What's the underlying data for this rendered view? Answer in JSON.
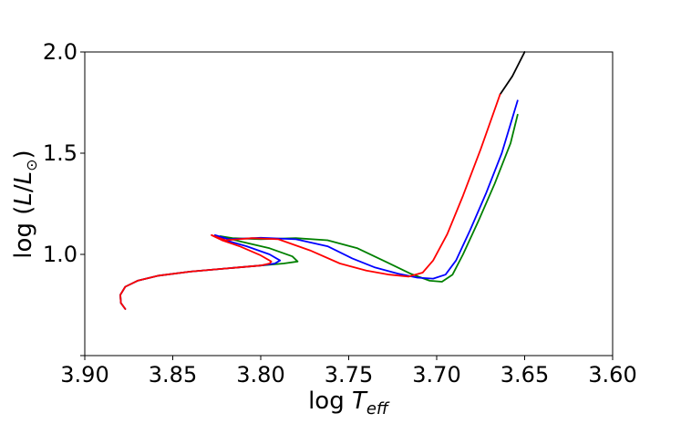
{
  "chart_data": {
    "type": "line",
    "title": "",
    "xlabel": {
      "prefix": "log ",
      "italic": "T",
      "subscript": "eff"
    },
    "ylabel": {
      "prefix": "log (",
      "italic1": "L",
      "slash": "/",
      "italic2": "L",
      "subscript": "⊙",
      "suffix": ")"
    },
    "xlim": [
      3.9,
      3.6
    ],
    "ylim": [
      0.5,
      2.0
    ],
    "x_ticks": [
      3.9,
      3.85,
      3.8,
      3.75,
      3.7,
      3.65,
      3.6
    ],
    "x_tick_labels": [
      "3.90",
      "3.85",
      "3.80",
      "3.75",
      "3.70",
      "3.65",
      "3.60"
    ],
    "y_ticks": [
      0.5,
      1.0,
      1.5,
      2.0
    ],
    "y_tick_labels": [
      "",
      "1.0",
      "1.5",
      "2.0"
    ],
    "grid": false,
    "legend": "none",
    "series": [
      {
        "color": "#000000",
        "points": [
          [
            3.664,
            1.79
          ],
          [
            3.657,
            1.88
          ],
          [
            3.65,
            2.0
          ]
        ]
      },
      {
        "color": "#008000",
        "points": [
          [
            3.877,
            0.73
          ],
          [
            3.8795,
            0.76
          ],
          [
            3.8798,
            0.8
          ],
          [
            3.877,
            0.84
          ],
          [
            3.87,
            0.87
          ],
          [
            3.858,
            0.895
          ],
          [
            3.84,
            0.915
          ],
          [
            3.82,
            0.93
          ],
          [
            3.8,
            0.945
          ],
          [
            3.787,
            0.955
          ],
          [
            3.779,
            0.965
          ],
          [
            3.782,
            0.99
          ],
          [
            3.795,
            1.03
          ],
          [
            3.812,
            1.065
          ],
          [
            3.823,
            1.09
          ],
          [
            3.816,
            1.08
          ],
          [
            3.8,
            1.075
          ],
          [
            3.78,
            1.08
          ],
          [
            3.762,
            1.07
          ],
          [
            3.745,
            1.03
          ],
          [
            3.728,
            0.96
          ],
          [
            3.715,
            0.905
          ],
          [
            3.704,
            0.87
          ],
          [
            3.697,
            0.865
          ],
          [
            3.691,
            0.9
          ],
          [
            3.685,
            1.0
          ],
          [
            3.676,
            1.17
          ],
          [
            3.667,
            1.35
          ],
          [
            3.658,
            1.55
          ],
          [
            3.654,
            1.69
          ]
        ]
      },
      {
        "color": "#0000ff",
        "points": [
          [
            3.877,
            0.73
          ],
          [
            3.8795,
            0.76
          ],
          [
            3.8798,
            0.8
          ],
          [
            3.877,
            0.84
          ],
          [
            3.87,
            0.87
          ],
          [
            3.858,
            0.895
          ],
          [
            3.84,
            0.915
          ],
          [
            3.82,
            0.93
          ],
          [
            3.8,
            0.945
          ],
          [
            3.792,
            0.955
          ],
          [
            3.789,
            0.97
          ],
          [
            3.795,
            1.0
          ],
          [
            3.808,
            1.04
          ],
          [
            3.82,
            1.07
          ],
          [
            3.826,
            1.095
          ],
          [
            3.818,
            1.075
          ],
          [
            3.8,
            1.082
          ],
          [
            3.78,
            1.075
          ],
          [
            3.762,
            1.04
          ],
          [
            3.748,
            0.98
          ],
          [
            3.735,
            0.935
          ],
          [
            3.722,
            0.905
          ],
          [
            3.711,
            0.885
          ],
          [
            3.702,
            0.88
          ],
          [
            3.695,
            0.9
          ],
          [
            3.689,
            0.97
          ],
          [
            3.681,
            1.12
          ],
          [
            3.672,
            1.3
          ],
          [
            3.663,
            1.5
          ],
          [
            3.654,
            1.76
          ]
        ]
      },
      {
        "color": "#ff0000",
        "points": [
          [
            3.877,
            0.73
          ],
          [
            3.8795,
            0.76
          ],
          [
            3.8798,
            0.8
          ],
          [
            3.877,
            0.84
          ],
          [
            3.87,
            0.87
          ],
          [
            3.858,
            0.895
          ],
          [
            3.84,
            0.915
          ],
          [
            3.82,
            0.93
          ],
          [
            3.8,
            0.945
          ],
          [
            3.795,
            0.955
          ],
          [
            3.794,
            0.965
          ],
          [
            3.8,
            0.995
          ],
          [
            3.812,
            1.04
          ],
          [
            3.822,
            1.07
          ],
          [
            3.828,
            1.095
          ],
          [
            3.82,
            1.07
          ],
          [
            3.805,
            1.08
          ],
          [
            3.79,
            1.075
          ],
          [
            3.772,
            1.02
          ],
          [
            3.755,
            0.955
          ],
          [
            3.74,
            0.92
          ],
          [
            3.727,
            0.9
          ],
          [
            3.716,
            0.89
          ],
          [
            3.708,
            0.91
          ],
          [
            3.702,
            0.97
          ],
          [
            3.694,
            1.1
          ],
          [
            3.685,
            1.29
          ],
          [
            3.675,
            1.52
          ],
          [
            3.664,
            1.79
          ]
        ]
      }
    ]
  }
}
